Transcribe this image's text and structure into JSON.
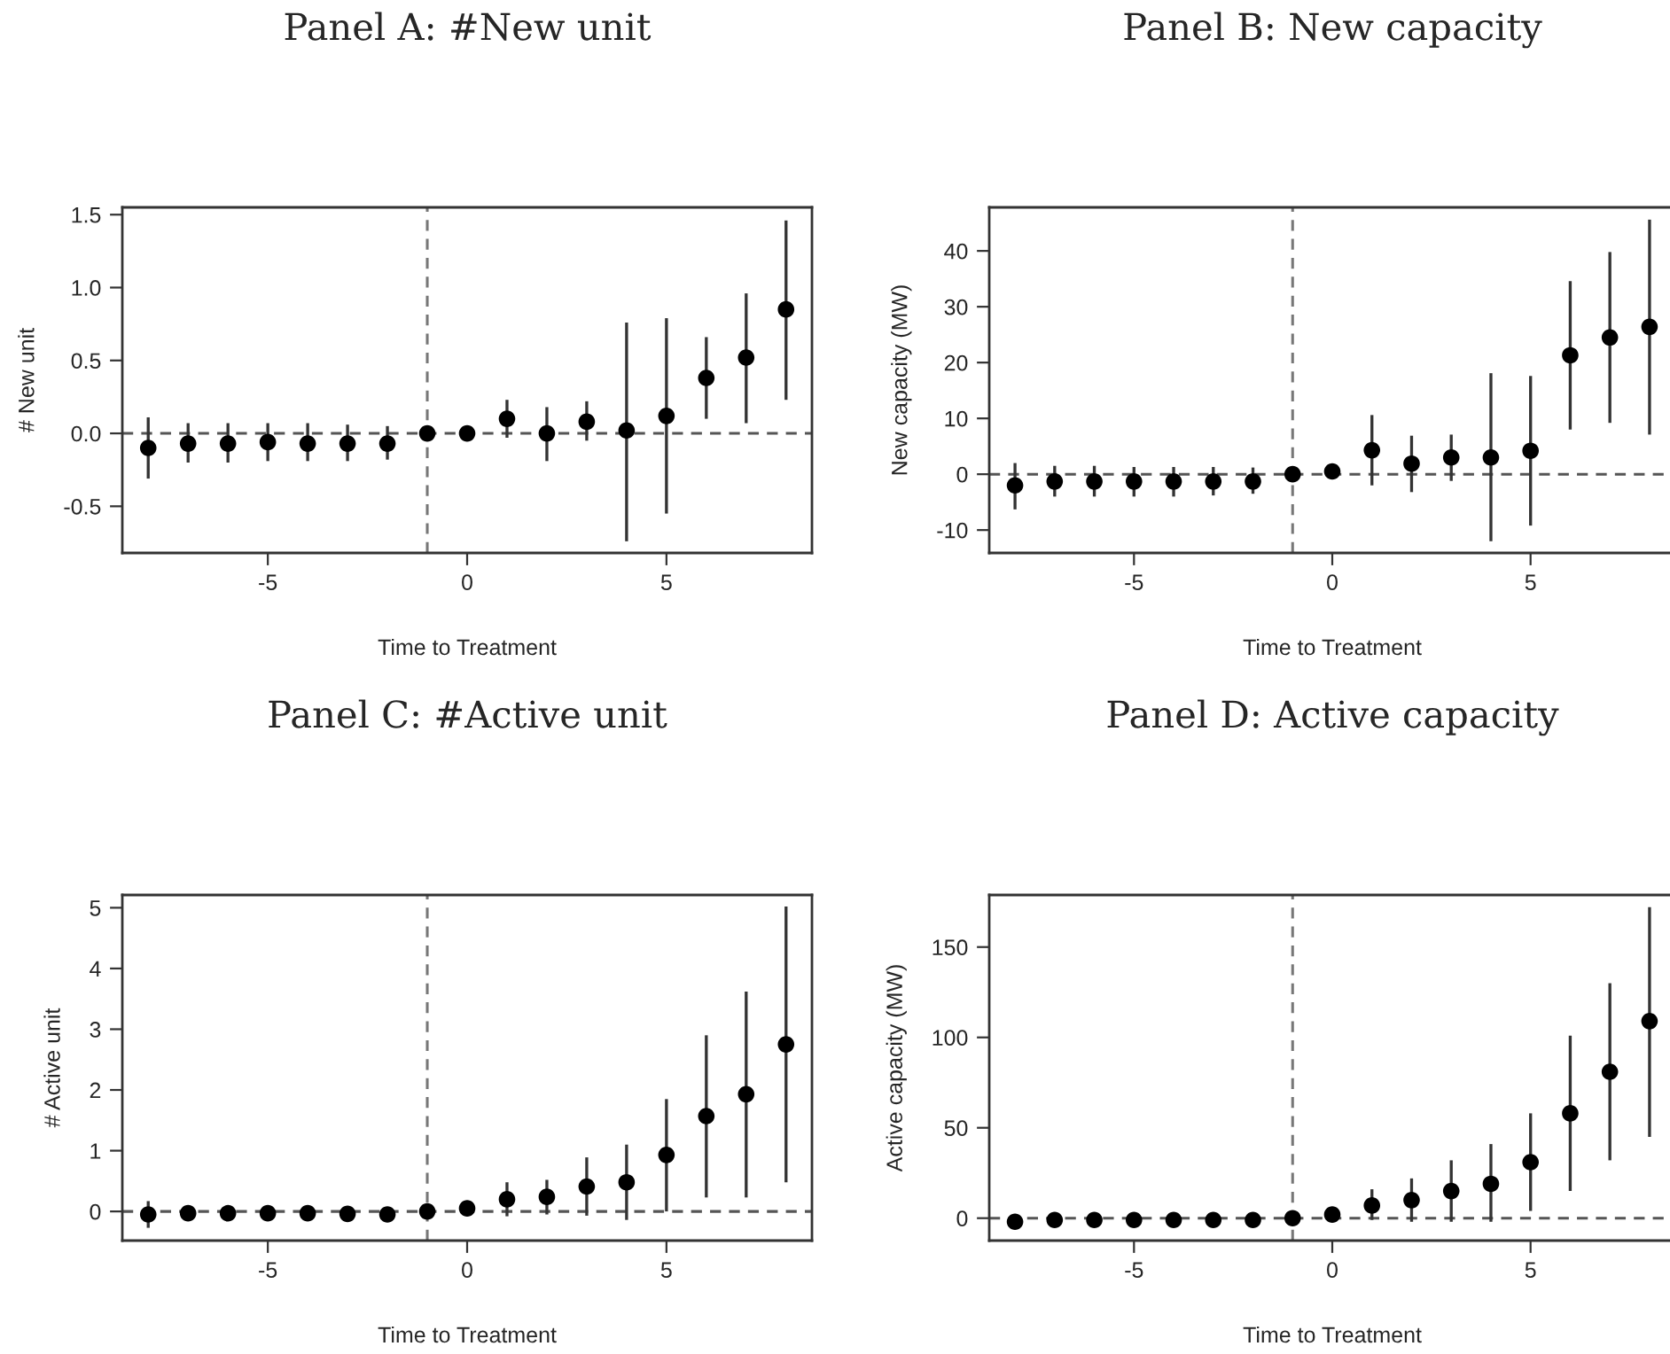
{
  "chart_data": [
    {
      "type": "scatter",
      "title": "Panel A: #New unit",
      "xlabel": "Time to Treatment",
      "ylabel": "# New unit",
      "marker": "circle",
      "grid": false,
      "x": [
        -8,
        -7,
        -6,
        -5,
        -4,
        -3,
        -2,
        -1,
        0,
        1,
        2,
        3,
        4,
        5,
        6,
        7,
        8
      ],
      "series": [
        {
          "color": "#000000",
          "values": [
            -0.1,
            -0.07,
            -0.07,
            -0.06,
            -0.07,
            -0.07,
            -0.07,
            0,
            0,
            0.1,
            0,
            0.08,
            0.02,
            0.12,
            0.38,
            0.52,
            0.85
          ],
          "errors": [
            [
              -0.31,
              0.11
            ],
            [
              -0.2,
              0.07
            ],
            [
              -0.2,
              0.07
            ],
            [
              -0.19,
              0.07
            ],
            [
              -0.19,
              0.07
            ],
            [
              -0.19,
              0.06
            ],
            [
              -0.18,
              0.05
            ],
            null,
            null,
            [
              -0.03,
              0.23
            ],
            [
              -0.19,
              0.18
            ],
            [
              -0.05,
              0.22
            ],
            [
              -0.74,
              0.76
            ],
            [
              -0.55,
              0.79
            ],
            [
              0.1,
              0.66
            ],
            [
              0.07,
              0.96
            ],
            [
              0.23,
              1.46
            ]
          ]
        }
      ],
      "xlim": [
        -8.65,
        8.65
      ],
      "xticks": [
        -5,
        0,
        5
      ],
      "ylim": [
        -0.82,
        1.55
      ],
      "yticks": [
        -0.5,
        {
          "value": 0,
          "label": "0.0"
        },
        0.5,
        {
          "value": 1,
          "label": "1.0"
        },
        1.5
      ],
      "ref_lines": [
        {
          "axis": "y",
          "value": 0,
          "color": "#555555",
          "line_style": "dashed"
        },
        {
          "axis": "x",
          "value": -1,
          "color": "#777777",
          "line_style": "dashed"
        }
      ]
    },
    {
      "type": "scatter",
      "title": "Panel B: New capacity",
      "xlabel": "Time to Treatment",
      "ylabel": "New capacity (MW)",
      "marker": "circle",
      "grid": false,
      "x": [
        -8,
        -7,
        -6,
        -5,
        -4,
        -3,
        -2,
        -1,
        0,
        1,
        2,
        3,
        4,
        5,
        6,
        7,
        8
      ],
      "series": [
        {
          "color": "#000000",
          "values": [
            -2,
            -1.3,
            -1.3,
            -1.3,
            -1.3,
            -1.3,
            -1.3,
            0,
            0.5,
            4.3,
            1.9,
            3,
            3,
            4.2,
            21.3,
            24.5,
            26.4
          ],
          "errors": [
            [
              -6.3,
              2
            ],
            [
              -4,
              1.5
            ],
            [
              -4,
              1.5
            ],
            [
              -4,
              1.3
            ],
            [
              -4,
              1.3
            ],
            [
              -3.8,
              1.3
            ],
            [
              -3.5,
              1.2
            ],
            null,
            null,
            [
              -2,
              10.6
            ],
            [
              -3.2,
              6.9
            ],
            [
              -1.2,
              7.1
            ],
            [
              -12,
              18.1
            ],
            [
              -9.2,
              17.6
            ],
            [
              8,
              34.6
            ],
            [
              9.2,
              39.8
            ],
            [
              7.1,
              45.6
            ]
          ]
        }
      ],
      "xlim": [
        -8.65,
        8.65
      ],
      "xticks": [
        -5,
        0,
        5
      ],
      "ylim": [
        -14.1,
        47.8
      ],
      "yticks": [
        -10,
        0,
        10,
        20,
        30,
        40
      ],
      "ref_lines": [
        {
          "axis": "y",
          "value": 0,
          "color": "#555555",
          "line_style": "dashed"
        },
        {
          "axis": "x",
          "value": -1,
          "color": "#777777",
          "line_style": "dashed"
        }
      ]
    },
    {
      "type": "scatter",
      "title": "Panel C: #Active unit",
      "xlabel": "Time to Treatment",
      "ylabel": "# Active unit",
      "marker": "circle",
      "grid": false,
      "x": [
        -8,
        -7,
        -6,
        -5,
        -4,
        -3,
        -2,
        -1,
        0,
        1,
        2,
        3,
        4,
        5,
        6,
        7,
        8
      ],
      "series": [
        {
          "color": "#000000",
          "values": [
            -0.05,
            -0.03,
            -0.03,
            -0.03,
            -0.03,
            -0.04,
            -0.05,
            0,
            0.05,
            0.2,
            0.24,
            0.41,
            0.48,
            0.93,
            1.57,
            1.93,
            2.75
          ],
          "errors": [
            [
              -0.27,
              0.17
            ],
            [
              -0.15,
              0.1
            ],
            [
              -0.15,
              0.1
            ],
            [
              -0.14,
              0.1
            ],
            [
              -0.14,
              0.09
            ],
            [
              -0.1,
              0.05
            ],
            [
              -0.1,
              0.03
            ],
            null,
            null,
            [
              -0.08,
              0.48
            ],
            [
              -0.05,
              0.52
            ],
            [
              -0.07,
              0.89
            ],
            [
              -0.14,
              1.1
            ],
            [
              0,
              1.85
            ],
            [
              0.23,
              2.9
            ],
            [
              0.23,
              3.62
            ],
            [
              0.48,
              5.02
            ]
          ]
        }
      ],
      "xlim": [
        -8.65,
        8.65
      ],
      "xticks": [
        -5,
        0,
        5
      ],
      "ylim": [
        -0.48,
        5.21
      ],
      "yticks": [
        0,
        1,
        2,
        3,
        4,
        5
      ],
      "ref_lines": [
        {
          "axis": "y",
          "value": 0,
          "color": "#555555",
          "line_style": "dashed"
        },
        {
          "axis": "x",
          "value": -1,
          "color": "#777777",
          "line_style": "dashed"
        }
      ]
    },
    {
      "type": "scatter",
      "title": "Panel D: Active capacity",
      "xlabel": "Time to Treatment",
      "ylabel": "Active capacity (MW)",
      "marker": "circle",
      "grid": false,
      "x": [
        -8,
        -7,
        -6,
        -5,
        -4,
        -3,
        -2,
        -1,
        0,
        1,
        2,
        3,
        4,
        5,
        6,
        7,
        8
      ],
      "series": [
        {
          "color": "#000000",
          "values": [
            -2,
            -1,
            -1,
            -1,
            -1,
            -1,
            -1,
            0,
            2,
            7,
            10,
            15,
            19,
            31,
            58,
            81,
            109
          ],
          "errors": [
            [
              -5,
              2
            ],
            null,
            null,
            null,
            null,
            null,
            null,
            null,
            null,
            [
              -1,
              16
            ],
            [
              -2,
              22
            ],
            [
              -2,
              32
            ],
            [
              -2,
              41
            ],
            [
              4,
              58
            ],
            [
              15,
              101
            ],
            [
              32,
              130
            ],
            [
              45,
              172
            ]
          ]
        }
      ],
      "xlim": [
        -8.65,
        8.65
      ],
      "xticks": [
        -5,
        0,
        5
      ],
      "ylim": [
        -12.4,
        178.8
      ],
      "yticks": [
        0,
        50,
        100,
        150
      ],
      "ref_lines": [
        {
          "axis": "y",
          "value": 0,
          "color": "#555555",
          "line_style": "dashed"
        },
        {
          "axis": "x",
          "value": -1,
          "color": "#777777",
          "line_style": "dashed"
        }
      ]
    }
  ]
}
